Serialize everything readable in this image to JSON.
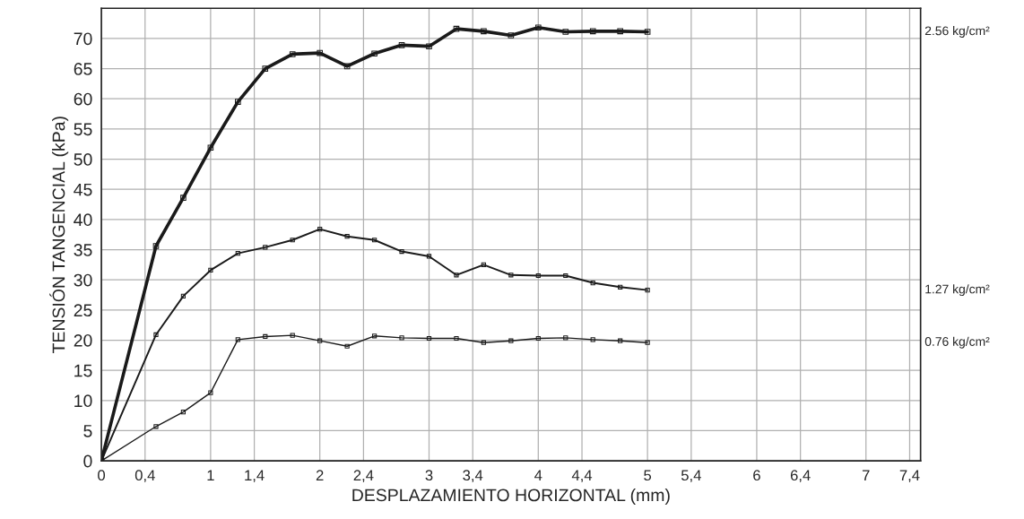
{
  "chart_data": {
    "type": "line",
    "xlabel": "DESPLAZAMIENTO HORIZONTAL (mm)",
    "ylabel": "TENSIÓN TANGENCIAL (kPa)",
    "x": [
      0,
      0.5,
      0.75,
      1.0,
      1.25,
      1.5,
      1.75,
      2.0,
      2.25,
      2.5,
      2.75,
      3.0,
      3.25,
      3.5,
      3.75,
      4.0,
      4.25,
      4.5,
      4.75,
      5.0
    ],
    "series": [
      {
        "name": "2.56 kg/cm²",
        "color": "#1a1a1a",
        "values": [
          0,
          35.6,
          43.6,
          51.9,
          59.5,
          65.0,
          67.4,
          67.6,
          65.4,
          67.5,
          68.9,
          68.7,
          71.6,
          71.2,
          70.5,
          71.8,
          71.1,
          71.2,
          71.2,
          71.1
        ]
      },
      {
        "name": "1.27 kg/cm²",
        "color": "#1a1a1a",
        "values": [
          0,
          20.9,
          27.3,
          31.6,
          34.4,
          35.4,
          36.6,
          38.4,
          37.2,
          36.6,
          34.7,
          33.9,
          30.8,
          32.5,
          30.8,
          30.7,
          30.7,
          29.5,
          28.8,
          28.3
        ]
      },
      {
        "name": "0.76 kg/cm²",
        "color": "#1a1a1a",
        "values": [
          0,
          5.7,
          8.1,
          11.3,
          20.1,
          20.6,
          20.8,
          19.9,
          19.0,
          20.7,
          20.4,
          20.3,
          20.3,
          19.6,
          19.9,
          20.3,
          20.4,
          20.1,
          19.9,
          19.6
        ]
      }
    ],
    "xlim": [
      0,
      7.5
    ],
    "xticks": [
      0,
      {
        "value": 0.4,
        "label": "0,4"
      },
      1,
      {
        "value": 1.4,
        "label": "1,4"
      },
      2,
      {
        "value": 2.4,
        "label": "2,4"
      },
      3,
      {
        "value": 3.4,
        "label": "3,4"
      },
      4,
      {
        "value": 4.4,
        "label": "4,4"
      },
      5,
      {
        "value": 5.4,
        "label": "5,4"
      },
      6,
      {
        "value": 6.4,
        "label": "6,4"
      },
      7,
      {
        "value": 7.4,
        "label": "7,4"
      }
    ],
    "ylim": [
      0,
      75
    ],
    "yticks": [
      0,
      5,
      10,
      15,
      20,
      25,
      30,
      35,
      40,
      45,
      50,
      55,
      60,
      65,
      70
    ],
    "grid": true,
    "marker": "square",
    "line_style": "solid",
    "legend": false
  }
}
